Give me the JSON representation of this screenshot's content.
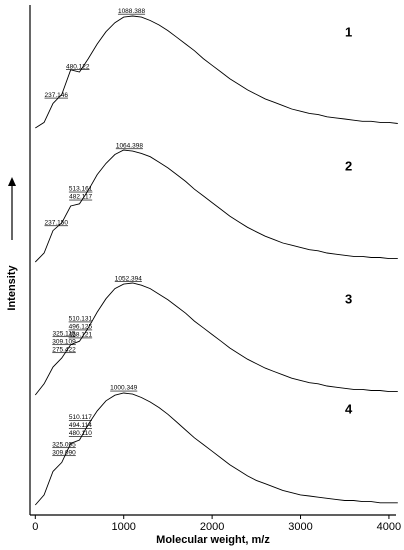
{
  "chart_data": {
    "type": "line",
    "xlabel": "Molecular weight, m/z",
    "ylabel": "Intensity",
    "xlim": [
      -60,
      4080
    ],
    "xticks": [
      0,
      1000,
      2000,
      3000,
      4000
    ],
    "ylim": [
      0,
      100
    ],
    "x": [
      0,
      100,
      200,
      300,
      400,
      500,
      600,
      700,
      800,
      900,
      1000,
      1100,
      1200,
      1300,
      1400,
      1500,
      1600,
      1700,
      1800,
      1900,
      2000,
      2100,
      2200,
      2300,
      2400,
      2500,
      2600,
      2700,
      2800,
      2900,
      3000,
      3100,
      3200,
      3300,
      3400,
      3500,
      3600,
      3700,
      3800,
      3900,
      4000,
      4100
    ],
    "series": [
      {
        "name": "1",
        "color": "#000000",
        "values": [
          0,
          5,
          22,
          30,
          52,
          50,
          62,
          75,
          86,
          94,
          99,
          100,
          99,
          96,
          92,
          87,
          81,
          75,
          69,
          62,
          56,
          50,
          44,
          39,
          34,
          30,
          26,
          23,
          20,
          17,
          15,
          13,
          12,
          10,
          9,
          8,
          7,
          6,
          6,
          5,
          5,
          4
        ],
        "annotations": [
          [
            1088.388
          ],
          [
            480.122
          ],
          [
            237.146
          ]
        ]
      },
      {
        "name": "2",
        "color": "#000000",
        "values": [
          0,
          8,
          28,
          35,
          50,
          52,
          64,
          78,
          88,
          96,
          100,
          99,
          97,
          94,
          89,
          84,
          78,
          72,
          65,
          59,
          53,
          47,
          41,
          36,
          31,
          27,
          23,
          20,
          17,
          15,
          13,
          11,
          10,
          8,
          7,
          6,
          5,
          5,
          4,
          4,
          3,
          3
        ],
        "annotations": [
          [
            1064.398
          ],
          [
            {
              "value": 513.161,
              "label": "513.161"
            },
            482.117
          ],
          [
            {
              "value": 237.15,
              "label": "237.150"
            }
          ]
        ]
      },
      {
        "name": "3",
        "color": "#000000",
        "values": [
          0,
          10,
          25,
          33,
          45,
          48,
          60,
          74,
          86,
          95,
          99,
          100,
          98,
          95,
          90,
          85,
          79,
          73,
          66,
          60,
          54,
          48,
          42,
          37,
          32,
          28,
          24,
          21,
          18,
          15,
          13,
          11,
          10,
          8,
          7,
          6,
          5,
          5,
          4,
          4,
          3,
          3
        ],
        "annotations": [
          [
            1052.394
          ],
          [
            510.131,
            496.125,
            468.121
          ],
          [
            325.115,
            309.109,
            275.422
          ]
        ]
      },
      {
        "name": "4",
        "color": "#000000",
        "values": [
          0,
          9,
          30,
          38,
          55,
          58,
          72,
          84,
          93,
          98,
          100,
          99,
          96,
          92,
          87,
          81,
          74,
          67,
          60,
          54,
          48,
          42,
          36,
          31,
          26,
          22,
          19,
          16,
          13,
          11,
          9,
          8,
          7,
          6,
          5,
          4,
          4,
          3,
          3,
          2,
          2,
          2
        ],
        "annotations": [
          [
            1000.349
          ],
          [
            510.117,
            494.114,
            {
              "value": 480.11,
              "label": "480.110"
            }
          ],
          [
            325.095,
            {
              "value": 309.09,
              "label": "309.090"
            }
          ]
        ]
      }
    ]
  }
}
